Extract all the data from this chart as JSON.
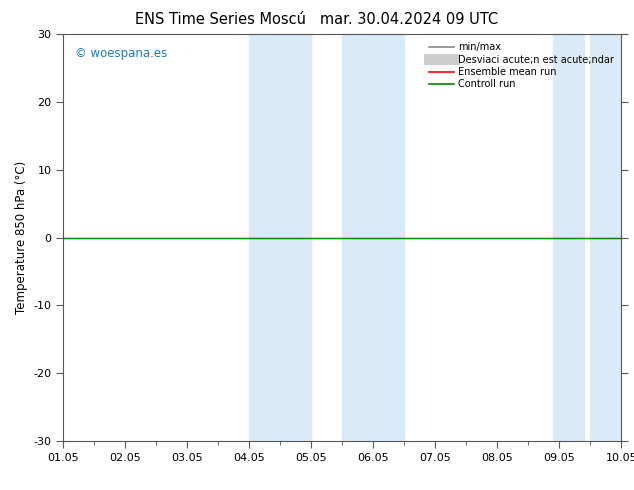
{
  "title_left": "ENS Time Series Moscú",
  "title_right": "mar. 30.04.2024 09 UTC",
  "ylabel": "Temperature 850 hPa (°C)",
  "ylim": [
    -30,
    30
  ],
  "yticks": [
    -30,
    -20,
    -10,
    0,
    10,
    20,
    30
  ],
  "xlim": [
    0,
    9
  ],
  "xtick_labels": [
    "01.05",
    "02.05",
    "03.05",
    "04.05",
    "05.05",
    "06.05",
    "07.05",
    "08.05",
    "09.05",
    "10.05"
  ],
  "xtick_positions": [
    0,
    1,
    2,
    3,
    4,
    5,
    6,
    7,
    8,
    9
  ],
  "shade_bands": [
    {
      "xmin": 3.0,
      "xmax": 3.5,
      "color": "#daeaf7"
    },
    {
      "xmin": 3.5,
      "xmax": 4.0,
      "color": "#daeaf7"
    },
    {
      "xmin": 4.5,
      "xmax": 5.0,
      "color": "#daeaf7"
    },
    {
      "xmin": 5.0,
      "xmax": 5.5,
      "color": "#daeaf7"
    },
    {
      "xmin": 8.0,
      "xmax": 8.5,
      "color": "#daeaf7"
    },
    {
      "xmin": 8.5,
      "xmax": 9.0,
      "color": "#daeaf7"
    }
  ],
  "watermark": "© woespana.es",
  "watermark_color": "#1a7abf",
  "background_color": "#ffffff",
  "plot_bg_color": "#ffffff",
  "zero_line_color": "#000000",
  "border_color": "#555555",
  "controll_run_color": "#008800",
  "ensemble_mean_color": "#ff0000",
  "minmax_color": "#888888",
  "std_color": "#cccccc",
  "title_fontsize": 10.5,
  "tick_fontsize": 8,
  "ylabel_fontsize": 8.5,
  "legend_label_minmax": "min/max",
  "legend_label_std": "Desviaci acute;n est acute;ndar",
  "legend_label_ensemble": "Ensemble mean run",
  "legend_label_control": "Controll run"
}
